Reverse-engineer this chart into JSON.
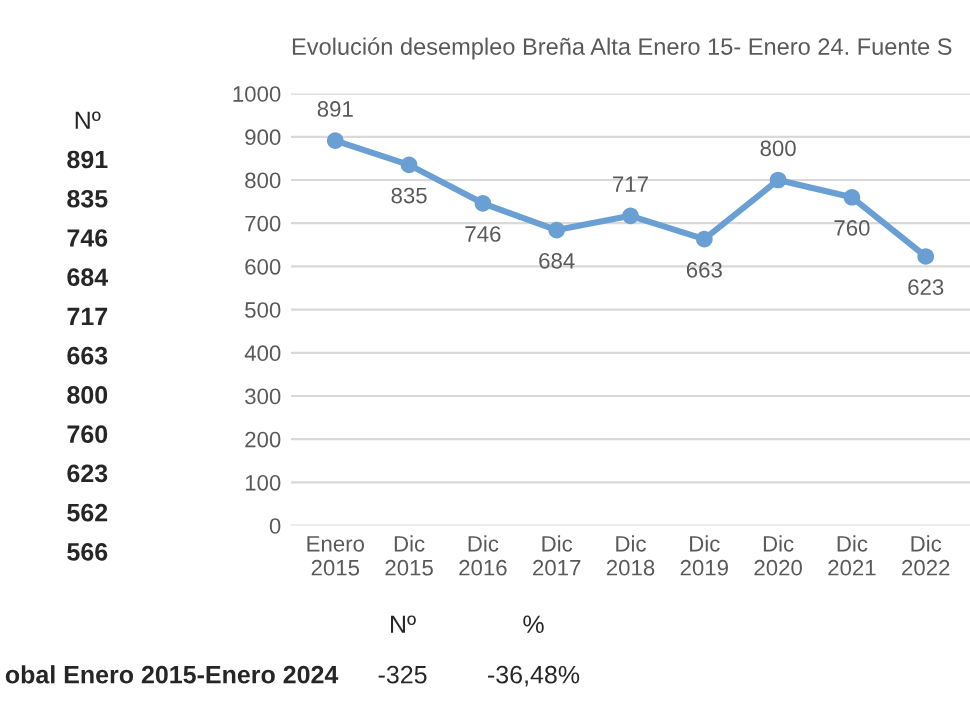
{
  "chart_data": {
    "type": "line",
    "title": "Evolución desempleo Breña Alta Enero 15- Enero 24. Fuente S",
    "categories": [
      "Enero\n2015",
      "Dic\n2015",
      "Dic\n2016",
      "Dic\n2017",
      "Dic\n2018",
      "Dic\n2019",
      "Dic\n2020",
      "Dic\n2021",
      "Dic\n2022"
    ],
    "series": [
      {
        "color": "#6a9fd4",
        "values": [
          891,
          835,
          746,
          684,
          717,
          663,
          800,
          760,
          623
        ]
      }
    ],
    "ylim": [
      0,
      1000
    ],
    "yticks": [
      0,
      100,
      200,
      300,
      400,
      500,
      600,
      700,
      800,
      900,
      1000
    ],
    "grid": "y",
    "marker": "circle",
    "line_style": "solid",
    "data_labels": true,
    "annotations": [
      "Nº",
      "891",
      "835",
      "746",
      "684",
      "717",
      "663",
      "800",
      "760",
      "623",
      "562",
      "566",
      "obal Enero 2015-Enero 2024",
      "Nº",
      "%",
      "-325",
      "-36,48%"
    ]
  }
}
